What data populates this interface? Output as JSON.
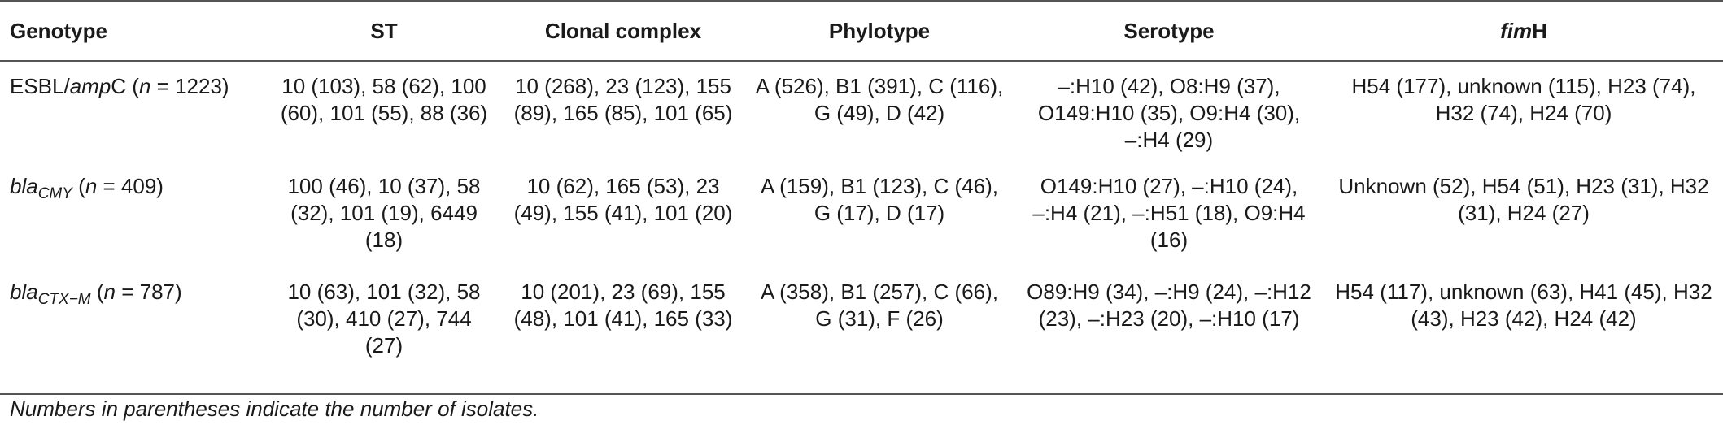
{
  "headers": {
    "genotype": "Genotype",
    "st": "ST",
    "clonal_complex": "Clonal complex",
    "phylotype": "Phylotype",
    "serotype": "Serotype",
    "fimh_italic": "fim",
    "fimh_rest": "H"
  },
  "rows": [
    {
      "genotype_pre": "ESBL/",
      "genotype_italic": "amp",
      "genotype_sub": "",
      "genotype_post": "C (",
      "n_label": "n",
      "n_value": " = 1223)",
      "st": "10 (103), 58 (62), 100 (60), 101 (55), 88 (36)",
      "clonal_complex": "10 (268), 23 (123), 155 (89), 165 (85), 101 (65)",
      "phylotype": "A (526), B1 (391), C (116), G (49), D (42)",
      "serotype": "–:H10 (42), O8:H9 (37), O149:H10 (35), O9:H4 (30), –:H4 (29)",
      "fimh": "H54 (177), unknown (115), H23 (74), H32 (74), H24 (70)"
    },
    {
      "genotype_pre": "",
      "genotype_italic": "bla",
      "genotype_sub": "CMY",
      "genotype_post": " (",
      "n_label": "n",
      "n_value": " = 409)",
      "st": "100 (46), 10 (37), 58 (32), 101 (19), 6449 (18)",
      "clonal_complex": "10 (62), 165 (53), 23 (49), 155 (41), 101 (20)",
      "phylotype": "A (159), B1 (123), C (46), G (17), D (17)",
      "serotype": "O149:H10 (27), –:H10 (24), –:H4 (21), –:H51 (18), O9:H4 (16)",
      "fimh": "Unknown (52), H54 (51), H23 (31), H32 (31), H24 (27)"
    },
    {
      "genotype_pre": "",
      "genotype_italic": "bla",
      "genotype_sub": "CTX−M",
      "genotype_post": " (",
      "n_label": "n",
      "n_value": " = 787)",
      "st": "10 (63), 101 (32), 58 (30), 410 (27), 744 (27)",
      "clonal_complex": "10 (201), 23 (69), 155 (48), 101 (41), 165 (33)",
      "phylotype": "A (358), B1 (257), C (66), G (31), F (26)",
      "serotype": "O89:H9 (34), –:H9 (24), –:H12 (23), –:H23 (20), –:H10 (17)",
      "fimh": "H54 (117), unknown (63), H41 (45), H32 (43), H23 (42), H24 (42)"
    }
  ],
  "footnote": "Numbers in parentheses indicate the number of isolates."
}
